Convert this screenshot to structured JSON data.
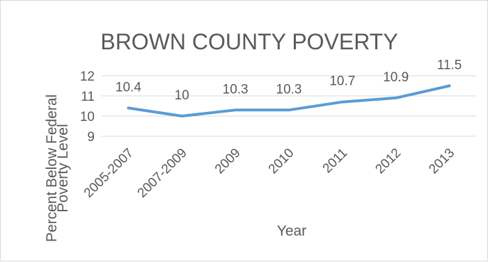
{
  "chart_data": {
    "type": "line",
    "title": "BROWN COUNTY POVERTY",
    "xlabel": "Year",
    "ylabel_lines": [
      "Percent Below Federal",
      "Poverty Level"
    ],
    "categories": [
      "2005-2007",
      "2007-2009",
      "2009",
      "2010",
      "2011",
      "2012",
      "2013"
    ],
    "series": [
      {
        "values": [
          10.4,
          10,
          10.3,
          10.3,
          10.7,
          10.9,
          11.5
        ],
        "labels": [
          "10.4",
          "10",
          "10.3",
          "10.3",
          "10.7",
          "10.9",
          "11.5"
        ]
      }
    ],
    "yticks": [
      "9",
      "10",
      "11",
      "12"
    ],
    "ylim": [
      9,
      12
    ],
    "grid": true,
    "line_color": "#5b9bd5",
    "grid_color": "#d9d9d9"
  }
}
